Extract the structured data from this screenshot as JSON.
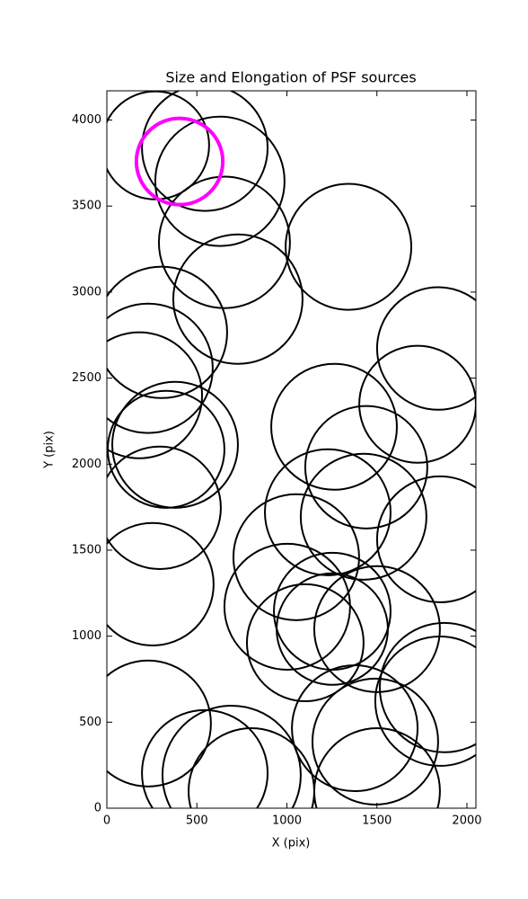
{
  "chart_data": {
    "type": "ellipse",
    "title": "Size and Elongation of PSF sources",
    "xlabel": "X (pix)",
    "ylabel": "Y (pix)",
    "xlim": [
      0,
      2050
    ],
    "ylim": [
      0,
      4170
    ],
    "xticks": [
      0,
      500,
      1000,
      1500,
      2000
    ],
    "yticks": [
      0,
      500,
      1000,
      1500,
      2000,
      2500,
      3000,
      3500,
      4000
    ],
    "grid": false,
    "series": [
      {
        "color": "#000000",
        "line_width": 2,
        "x": [
          269,
          544,
          628,
          653,
          728,
          1342,
          304,
          229,
          180,
          379,
          329,
          294,
          254,
          229,
          1840,
          1726,
          1262,
          1441,
          1227,
          1426,
          1850,
          1052,
          1002,
          1252,
          1102,
          1252,
          1501,
          1875,
          1850,
          1377,
          1491,
          544,
          693,
          803,
          1501
        ],
        "y": [
          3853,
          3838,
          3644,
          3289,
          2959,
          3263,
          2766,
          2557,
          2400,
          2112,
          2086,
          1746,
          1302,
          492,
          2672,
          2348,
          2217,
          1982,
          1720,
          1694,
          1563,
          1459,
          1171,
          1145,
          962,
          1041,
          1041,
          701,
          622,
          465,
          387,
          204,
          193,
          99,
          99
        ],
        "width": [
          299,
          349,
          359,
          364,
          359,
          349,
          364,
          359,
          349,
          349,
          324,
          339,
          339,
          349,
          339,
          324,
          349,
          339,
          349,
          349,
          349,
          349,
          349,
          324,
          324,
          309,
          349,
          359,
          359,
          349,
          349,
          349,
          384,
          349,
          349
        ],
        "height": [
          314,
          366,
          376,
          382,
          376,
          366,
          382,
          376,
          366,
          366,
          340,
          356,
          356,
          366,
          356,
          340,
          366,
          356,
          366,
          366,
          366,
          366,
          366,
          340,
          340,
          324,
          366,
          376,
          376,
          366,
          366,
          366,
          403,
          366,
          366
        ]
      },
      {
        "color": "#ff00ff",
        "line_width": 4,
        "x": [
          404
        ],
        "y": [
          3759
        ],
        "width": [
          240
        ],
        "height": [
          251
        ]
      }
    ]
  }
}
